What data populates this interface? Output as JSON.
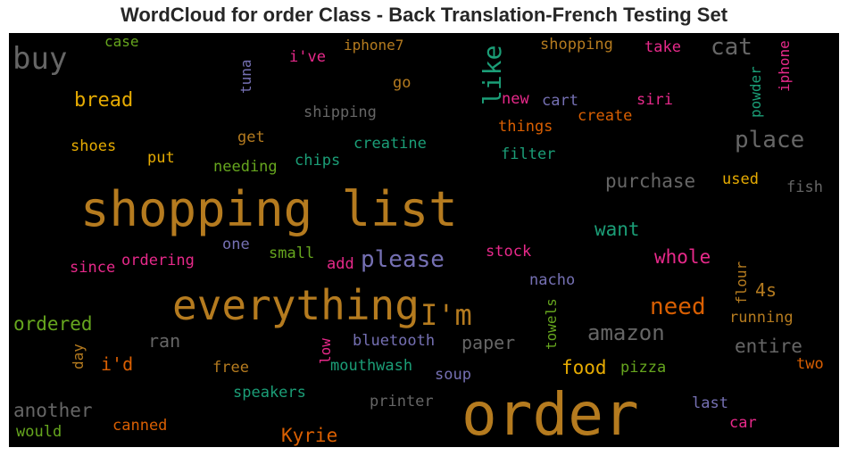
{
  "chart_data": {
    "type": "wordcloud",
    "title": "WordCloud for order Class - Back Translation-French Testing Set",
    "background": "#000000",
    "words": [
      {
        "text": "order",
        "color": "#b57b1f"
      },
      {
        "text": "shopping list",
        "color": "#b57b1f"
      },
      {
        "text": "everything",
        "color": "#b57b1f"
      },
      {
        "text": "I'm",
        "color": "#b57b1f"
      },
      {
        "text": "buy",
        "color": "#666666"
      },
      {
        "text": "cat",
        "color": "#666666"
      },
      {
        "text": "like",
        "color": "#1b9e77"
      },
      {
        "text": "place",
        "color": "#666666"
      },
      {
        "text": "please",
        "color": "#7570b3"
      },
      {
        "text": "need",
        "color": "#d95f02"
      },
      {
        "text": "amazon",
        "color": "#666666"
      },
      {
        "text": "bread",
        "color": "#e6ab02"
      },
      {
        "text": "purchase",
        "color": "#666666"
      },
      {
        "text": "ordered",
        "color": "#66a61e"
      },
      {
        "text": "whole",
        "color": "#e7298a"
      },
      {
        "text": "want",
        "color": "#1b9e77"
      },
      {
        "text": "another",
        "color": "#666666"
      },
      {
        "text": "Kyrie",
        "color": "#d95f02"
      },
      {
        "text": "entire",
        "color": "#666666"
      },
      {
        "text": "food",
        "color": "#e6ab02"
      },
      {
        "text": "paper",
        "color": "#666666"
      },
      {
        "text": "i'd",
        "color": "#d95f02"
      },
      {
        "text": "ran",
        "color": "#666666"
      },
      {
        "text": "4s",
        "color": "#b57b1f"
      },
      {
        "text": "shopping",
        "color": "#b57b1f"
      },
      {
        "text": "case",
        "color": "#66a61e"
      },
      {
        "text": "iphone7",
        "color": "#b57b1f"
      },
      {
        "text": "take",
        "color": "#e7298a"
      },
      {
        "text": "i've",
        "color": "#e7298a"
      },
      {
        "text": "tuna",
        "color": "#7570b3"
      },
      {
        "text": "go",
        "color": "#b57b1f"
      },
      {
        "text": "new",
        "color": "#e7298a"
      },
      {
        "text": "cart",
        "color": "#7570b3"
      },
      {
        "text": "siri",
        "color": "#e7298a"
      },
      {
        "text": "create",
        "color": "#d95f02"
      },
      {
        "text": "powder",
        "color": "#1b9e77"
      },
      {
        "text": "iphone",
        "color": "#e7298a"
      },
      {
        "text": "shipping",
        "color": "#666666"
      },
      {
        "text": "things",
        "color": "#d95f02"
      },
      {
        "text": "get",
        "color": "#b57b1f"
      },
      {
        "text": "creatine",
        "color": "#1b9e77"
      },
      {
        "text": "shoes",
        "color": "#e6ab02"
      },
      {
        "text": "put",
        "color": "#e6ab02"
      },
      {
        "text": "needing",
        "color": "#66a61e"
      },
      {
        "text": "chips",
        "color": "#1b9e77"
      },
      {
        "text": "filter",
        "color": "#1b9e77"
      },
      {
        "text": "used",
        "color": "#e6ab02"
      },
      {
        "text": "fish",
        "color": "#666666"
      },
      {
        "text": "one",
        "color": "#7570b3"
      },
      {
        "text": "small",
        "color": "#66a61e"
      },
      {
        "text": "stock",
        "color": "#e7298a"
      },
      {
        "text": "since",
        "color": "#e7298a"
      },
      {
        "text": "ordering",
        "color": "#e7298a"
      },
      {
        "text": "add",
        "color": "#e7298a"
      },
      {
        "text": "flour",
        "color": "#b57b1f"
      },
      {
        "text": "nacho",
        "color": "#7570b3"
      },
      {
        "text": "towels",
        "color": "#66a61e"
      },
      {
        "text": "running",
        "color": "#b57b1f"
      },
      {
        "text": "low",
        "color": "#e7298a"
      },
      {
        "text": "bluetooth",
        "color": "#7570b3"
      },
      {
        "text": "day",
        "color": "#b57b1f"
      },
      {
        "text": "free",
        "color": "#b57b1f"
      },
      {
        "text": "mouthwash",
        "color": "#1b9e77"
      },
      {
        "text": "soup",
        "color": "#7570b3"
      },
      {
        "text": "pizza",
        "color": "#66a61e"
      },
      {
        "text": "two",
        "color": "#d95f02"
      },
      {
        "text": "speakers",
        "color": "#1b9e77"
      },
      {
        "text": "printer",
        "color": "#666666"
      },
      {
        "text": "last",
        "color": "#7570b3"
      },
      {
        "text": "car",
        "color": "#e7298a"
      },
      {
        "text": "would",
        "color": "#66a61e"
      },
      {
        "text": "canned",
        "color": "#d95f02"
      }
    ]
  }
}
